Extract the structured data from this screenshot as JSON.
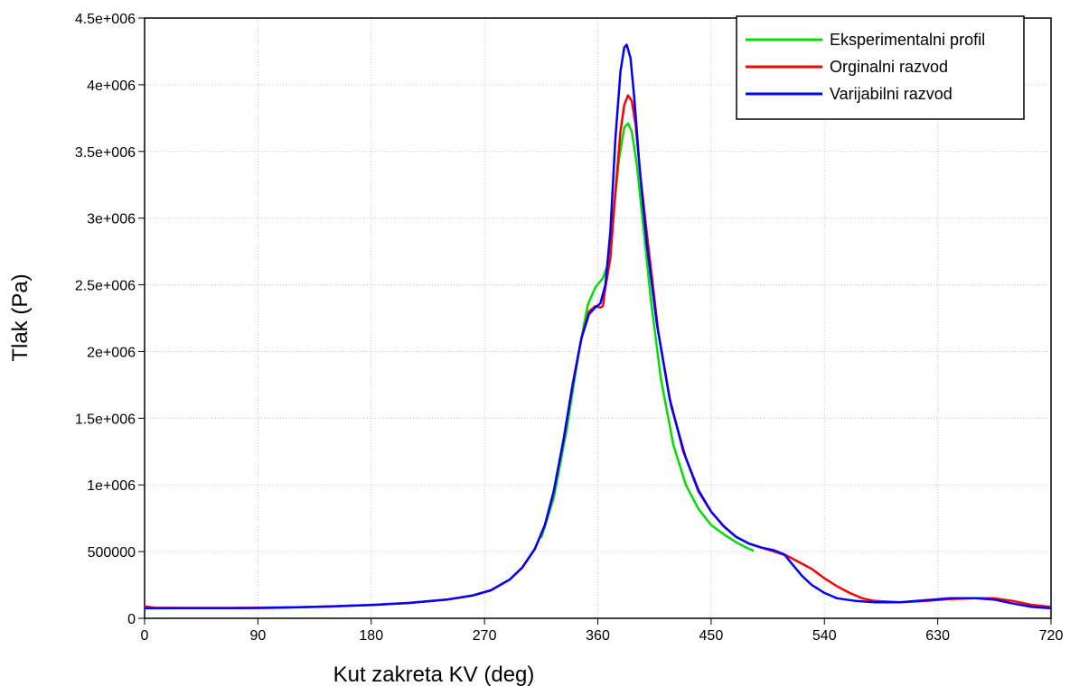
{
  "chart_data": {
    "type": "line",
    "title": "",
    "xlabel": "Kut zakreta KV (deg)",
    "ylabel": "Tlak (Pa)",
    "xlim": [
      0,
      720
    ],
    "ylim": [
      0,
      4500000
    ],
    "x_ticks": [
      0,
      90,
      180,
      270,
      360,
      450,
      540,
      630,
      720
    ],
    "x_tick_labels": [
      "0",
      "90",
      "180",
      "270",
      "360",
      "450",
      "540",
      "630",
      "720"
    ],
    "y_ticks": [
      0,
      500000,
      1000000,
      1500000,
      2000000,
      2500000,
      3000000,
      3500000,
      4000000,
      4500000
    ],
    "y_tick_labels": [
      "0",
      "500000",
      "1e+006",
      "1.5e+006",
      "2e+006",
      "2.5e+006",
      "3e+006",
      "3.5e+006",
      "4e+006",
      "4.5e+006"
    ],
    "grid": true,
    "legend_position": "top-right",
    "series": [
      {
        "name": "Eksperimentalni profil",
        "color": "#00e000",
        "points": [
          [
            315,
            600000
          ],
          [
            325,
            900000
          ],
          [
            335,
            1400000
          ],
          [
            345,
            2000000
          ],
          [
            352,
            2350000
          ],
          [
            358,
            2480000
          ],
          [
            364,
            2550000
          ],
          [
            368,
            2650000
          ],
          [
            372,
            3000000
          ],
          [
            377,
            3450000
          ],
          [
            381,
            3680000
          ],
          [
            384,
            3710000
          ],
          [
            387,
            3650000
          ],
          [
            391,
            3400000
          ],
          [
            396,
            2950000
          ],
          [
            402,
            2400000
          ],
          [
            410,
            1800000
          ],
          [
            420,
            1300000
          ],
          [
            430,
            1000000
          ],
          [
            440,
            820000
          ],
          [
            450,
            700000
          ],
          [
            460,
            630000
          ],
          [
            470,
            570000
          ],
          [
            478,
            530000
          ],
          [
            484,
            505000
          ]
        ]
      },
      {
        "name": "Orginalni razvod",
        "color": "#ff0000",
        "points": [
          [
            0,
            90000
          ],
          [
            8,
            80000
          ],
          [
            30,
            78000
          ],
          [
            60,
            78000
          ],
          [
            90,
            79000
          ],
          [
            120,
            83000
          ],
          [
            150,
            90000
          ],
          [
            180,
            100000
          ],
          [
            210,
            115000
          ],
          [
            240,
            140000
          ],
          [
            260,
            170000
          ],
          [
            275,
            210000
          ],
          [
            290,
            290000
          ],
          [
            300,
            380000
          ],
          [
            310,
            520000
          ],
          [
            318,
            700000
          ],
          [
            325,
            950000
          ],
          [
            333,
            1350000
          ],
          [
            340,
            1750000
          ],
          [
            347,
            2100000
          ],
          [
            353,
            2300000
          ],
          [
            358,
            2340000
          ],
          [
            362,
            2330000
          ],
          [
            364,
            2340000
          ],
          [
            366,
            2480000
          ],
          [
            370,
            2700000
          ],
          [
            374,
            3200000
          ],
          [
            378,
            3650000
          ],
          [
            381,
            3850000
          ],
          [
            384,
            3920000
          ],
          [
            387,
            3880000
          ],
          [
            390,
            3700000
          ],
          [
            394,
            3300000
          ],
          [
            400,
            2800000
          ],
          [
            408,
            2150000
          ],
          [
            418,
            1600000
          ],
          [
            430,
            1200000
          ],
          [
            440,
            950000
          ],
          [
            450,
            800000
          ],
          [
            460,
            690000
          ],
          [
            470,
            610000
          ],
          [
            480,
            560000
          ],
          [
            490,
            530000
          ],
          [
            500,
            500000
          ],
          [
            510,
            470000
          ],
          [
            520,
            420000
          ],
          [
            530,
            370000
          ],
          [
            540,
            300000
          ],
          [
            550,
            240000
          ],
          [
            560,
            190000
          ],
          [
            570,
            150000
          ],
          [
            580,
            130000
          ],
          [
            600,
            120000
          ],
          [
            620,
            130000
          ],
          [
            640,
            145000
          ],
          [
            660,
            150000
          ],
          [
            675,
            150000
          ],
          [
            690,
            130000
          ],
          [
            705,
            100000
          ],
          [
            720,
            85000
          ]
        ]
      },
      {
        "name": "Varijabilni razvod",
        "color": "#0000ff",
        "points": [
          [
            0,
            75000
          ],
          [
            30,
            76000
          ],
          [
            60,
            76000
          ],
          [
            90,
            77000
          ],
          [
            120,
            82000
          ],
          [
            150,
            90000
          ],
          [
            180,
            100000
          ],
          [
            210,
            115000
          ],
          [
            240,
            140000
          ],
          [
            260,
            170000
          ],
          [
            275,
            210000
          ],
          [
            290,
            290000
          ],
          [
            300,
            380000
          ],
          [
            310,
            520000
          ],
          [
            318,
            700000
          ],
          [
            325,
            950000
          ],
          [
            333,
            1350000
          ],
          [
            340,
            1750000
          ],
          [
            347,
            2100000
          ],
          [
            353,
            2280000
          ],
          [
            358,
            2330000
          ],
          [
            362,
            2360000
          ],
          [
            366,
            2500000
          ],
          [
            370,
            2900000
          ],
          [
            374,
            3600000
          ],
          [
            378,
            4100000
          ],
          [
            381,
            4280000
          ],
          [
            383,
            4300000
          ],
          [
            386,
            4200000
          ],
          [
            389,
            3900000
          ],
          [
            393,
            3400000
          ],
          [
            399,
            2800000
          ],
          [
            407,
            2200000
          ],
          [
            417,
            1650000
          ],
          [
            428,
            1250000
          ],
          [
            440,
            960000
          ],
          [
            450,
            800000
          ],
          [
            460,
            690000
          ],
          [
            470,
            610000
          ],
          [
            480,
            560000
          ],
          [
            490,
            530000
          ],
          [
            500,
            510000
          ],
          [
            508,
            480000
          ],
          [
            515,
            400000
          ],
          [
            522,
            320000
          ],
          [
            530,
            250000
          ],
          [
            540,
            190000
          ],
          [
            550,
            150000
          ],
          [
            565,
            130000
          ],
          [
            580,
            120000
          ],
          [
            600,
            120000
          ],
          [
            620,
            135000
          ],
          [
            640,
            150000
          ],
          [
            660,
            150000
          ],
          [
            675,
            140000
          ],
          [
            690,
            110000
          ],
          [
            705,
            85000
          ],
          [
            720,
            75000
          ]
        ]
      }
    ]
  }
}
